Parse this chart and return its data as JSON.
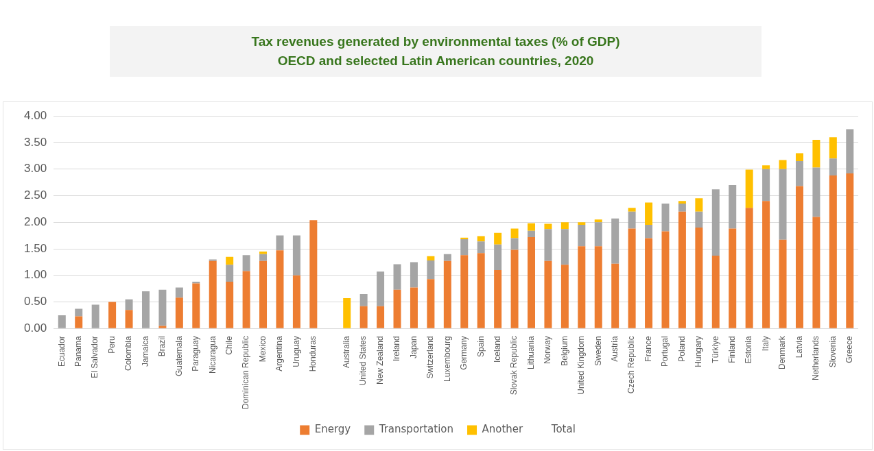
{
  "chart_data": {
    "type": "bar",
    "title": "Tax revenues generated by environmental taxes (% of GDP)",
    "subtitle": "OECD and selected Latin American countries, 2020",
    "categories": [
      "Ecuador",
      "Panama",
      "El Salvador",
      "Peru",
      "Colombia",
      "Jamaica",
      "Brazil",
      "Guatemala",
      "Paraguay",
      "Nicaragua",
      "Chile",
      "Dominican Republic",
      "Mexico",
      "Argentina",
      "Uruguay",
      "Honduras",
      null,
      "Australia",
      "United States",
      "New Zealand",
      "Ireland",
      "Japan",
      "Switzerland",
      "Luxembourg",
      "Germany",
      "Spain",
      "Iceland",
      "Slovak Republic",
      "Lithuania",
      "Norway",
      "Belgium",
      "United Kingdom",
      "Sweden",
      "Austria",
      "Czech Republic",
      "France",
      "Portugal",
      "Poland",
      "Hungary",
      "Türkiye",
      "Finland",
      "Estonia",
      "Italy",
      "Denmark",
      "Latvia",
      "Netherlands",
      "Slovenia",
      "Greece"
    ],
    "stacked": true,
    "series": [
      {
        "name": "Energy",
        "color": "#ed7d31",
        "values": [
          0,
          0.23,
          0,
          0.5,
          0.35,
          0,
          0.05,
          0.58,
          0.85,
          1.27,
          0.88,
          1.08,
          1.27,
          1.47,
          1.0,
          2.04,
          null,
          0,
          0.42,
          0.42,
          0.73,
          0.77,
          0.93,
          1.27,
          1.38,
          1.42,
          1.1,
          1.48,
          1.72,
          1.27,
          1.2,
          1.55,
          1.55,
          1.22,
          1.88,
          1.7,
          1.83,
          2.2,
          1.9,
          1.37,
          1.88,
          2.27,
          2.4,
          1.67,
          2.68,
          2.1,
          2.88,
          2.92
        ]
      },
      {
        "name": "Transportation",
        "color": "#a5a5a5",
        "values": [
          0.25,
          0.14,
          0.45,
          0,
          0.2,
          0.7,
          0.68,
          0.19,
          0.03,
          0.03,
          0.32,
          0.3,
          0.13,
          0.28,
          0.75,
          0,
          null,
          0,
          0.23,
          0.65,
          0.48,
          0.48,
          0.35,
          0.13,
          0.3,
          0.22,
          0.48,
          0.22,
          0.12,
          0.6,
          0.67,
          0.4,
          0.45,
          0.85,
          0.32,
          0.25,
          0.52,
          0.15,
          0.3,
          1.25,
          0.82,
          0,
          0.6,
          1.33,
          0.47,
          0.93,
          0.32,
          0.83
        ]
      },
      {
        "name": "Another",
        "color": "#ffc000",
        "values": [
          0,
          0,
          0,
          0,
          0,
          0,
          0,
          0,
          0,
          0,
          0.15,
          0,
          0.05,
          0,
          0,
          0,
          null,
          0.57,
          0,
          0,
          0,
          0,
          0.08,
          0,
          0.03,
          0.1,
          0.22,
          0.18,
          0.14,
          0.1,
          0.13,
          0.05,
          0.05,
          0,
          0.07,
          0.42,
          0,
          0.05,
          0.25,
          0,
          0,
          0.72,
          0.07,
          0.17,
          0.15,
          0.52,
          0.4,
          0
        ]
      },
      {
        "name": "Total",
        "values": [
          null,
          null,
          null,
          null,
          null,
          null,
          null,
          null,
          null,
          null,
          null,
          null,
          null,
          null,
          null,
          null,
          null,
          null,
          null,
          null,
          null,
          null,
          null,
          null,
          null,
          null,
          null,
          null,
          null,
          null,
          null,
          null,
          null,
          null,
          null,
          null,
          null,
          null,
          null,
          null,
          null,
          null,
          null,
          null,
          null,
          null,
          null,
          null
        ]
      }
    ],
    "ylim": [
      0,
      4
    ],
    "yticks": [
      {
        "value": 0,
        "label": "0.00"
      },
      {
        "value": 0.5,
        "label": "0.50"
      },
      {
        "value": 1,
        "label": "1.00"
      },
      {
        "value": 1.5,
        "label": "1.50"
      },
      {
        "value": 2,
        "label": "2.00"
      },
      {
        "value": 2.5,
        "label": "2.50"
      },
      {
        "value": 3,
        "label": "3.00"
      },
      {
        "value": 3.5,
        "label": "3.50"
      },
      {
        "value": 4,
        "label": "4.00"
      }
    ],
    "grid": "y",
    "legend": "bottom"
  }
}
